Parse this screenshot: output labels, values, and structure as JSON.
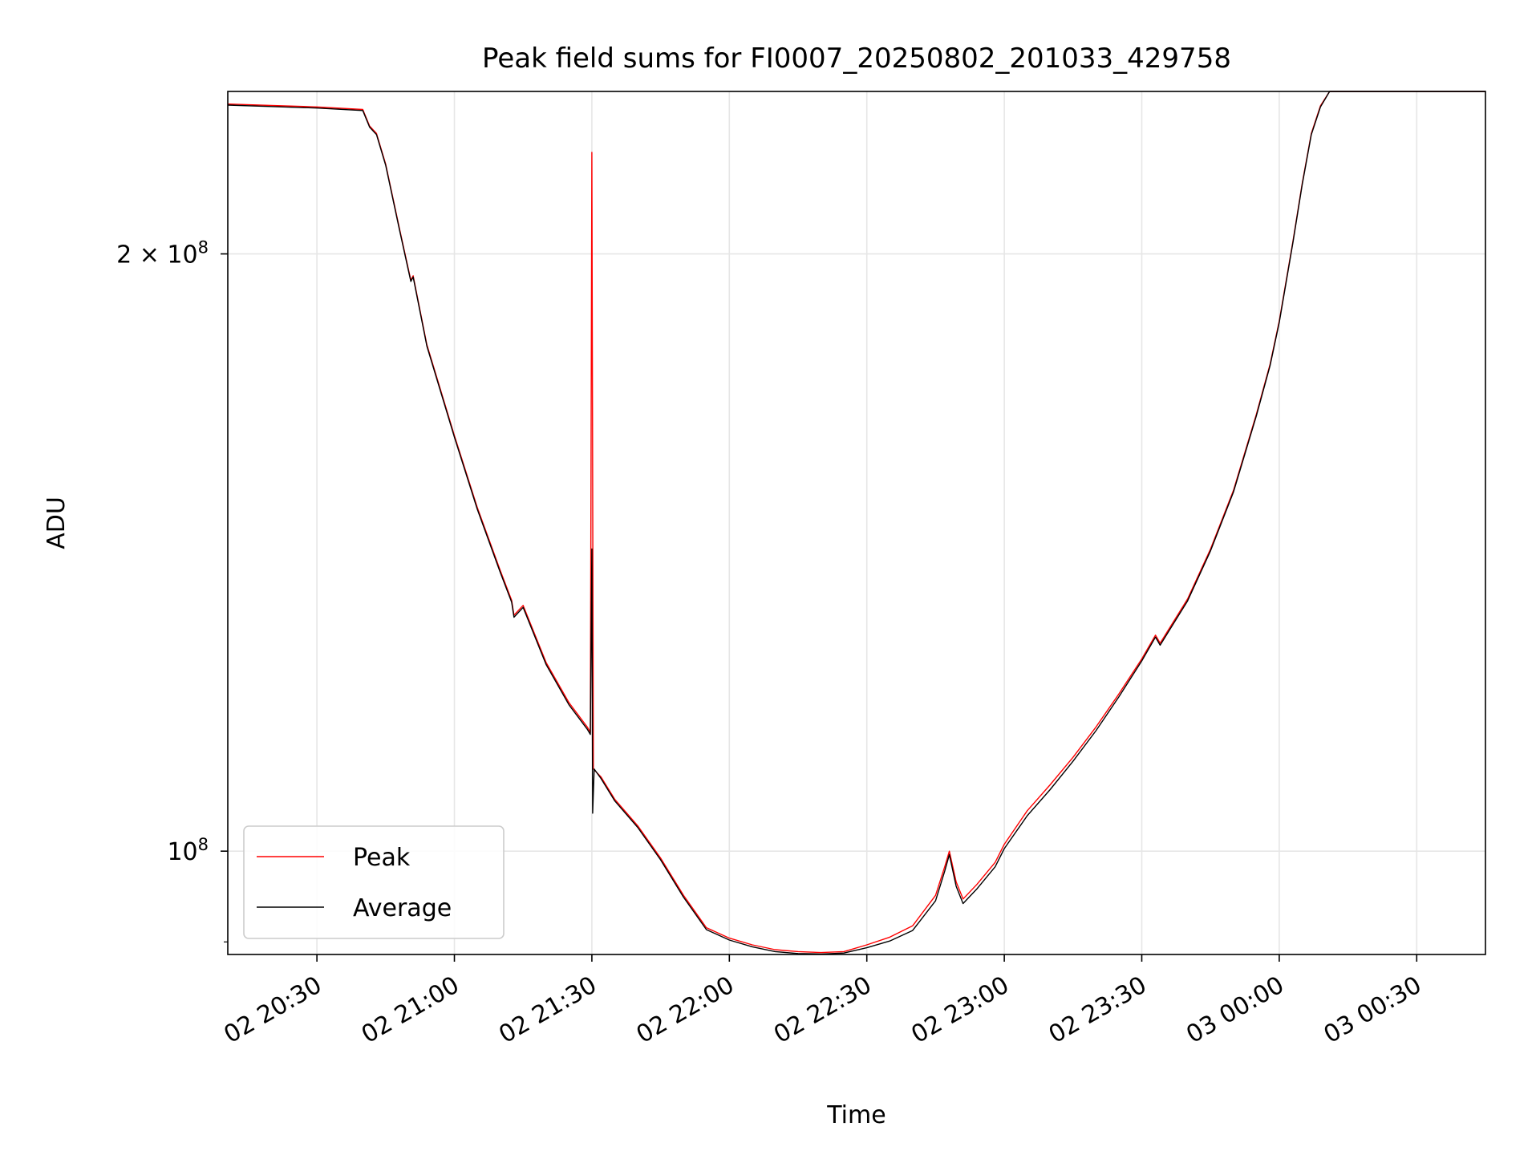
{
  "chart_data": {
    "type": "line",
    "title": "Peak field sums for FI0007_20250802_201033_429758",
    "xlabel": "Time",
    "ylabel": "ADU",
    "xaxis_kind": "datetime",
    "xlim": [
      "2025-08-02T20:10:33",
      "2025-08-03T00:45:00"
    ],
    "ylim": [
      88700000,
      241500000
    ],
    "yscale": "log",
    "grid": true,
    "legend_position": "lower-left",
    "x_ticks": [
      {
        "value": "2025-08-02T20:30:00",
        "label": "02 20:30"
      },
      {
        "value": "2025-08-02T21:00:00",
        "label": "02 21:00"
      },
      {
        "value": "2025-08-02T21:30:00",
        "label": "02 21:30"
      },
      {
        "value": "2025-08-02T22:00:00",
        "label": "02 22:00"
      },
      {
        "value": "2025-08-02T22:30:00",
        "label": "02 22:30"
      },
      {
        "value": "2025-08-02T23:00:00",
        "label": "02 23:00"
      },
      {
        "value": "2025-08-02T23:30:00",
        "label": "02 23:30"
      },
      {
        "value": "2025-08-03T00:00:00",
        "label": "03 00:00"
      },
      {
        "value": "2025-08-03T00:30:00",
        "label": "03 00:30"
      }
    ],
    "y_ticks": [
      {
        "value": 100000000,
        "base": "10",
        "exp": "8"
      },
      {
        "value": 200000000,
        "base": "2 × 10",
        "exp": "8"
      }
    ],
    "series": [
      {
        "name": "Peak",
        "color": "#ff0000",
        "points": [
          [
            "2025-08-02T20:10:33",
            238000000
          ],
          [
            "2025-08-02T20:20:00",
            237600000
          ],
          [
            "2025-08-02T20:30:00",
            237200000
          ],
          [
            "2025-08-02T20:40:00",
            236500000
          ],
          [
            "2025-08-02T20:41:30",
            232000000
          ],
          [
            "2025-08-02T20:43:00",
            230000000
          ],
          [
            "2025-08-02T20:45:00",
            222000000
          ],
          [
            "2025-08-02T20:48:00",
            206000000
          ],
          [
            "2025-08-02T20:50:30",
            194000000
          ],
          [
            "2025-08-02T20:51:00",
            195000000
          ],
          [
            "2025-08-02T20:54:00",
            180000000
          ],
          [
            "2025-08-02T21:00:00",
            162000000
          ],
          [
            "2025-08-02T21:05:00",
            149000000
          ],
          [
            "2025-08-02T21:10:00",
            138500000
          ],
          [
            "2025-08-02T21:12:30",
            133800000
          ],
          [
            "2025-08-02T21:13:00",
            131500000
          ],
          [
            "2025-08-02T21:15:00",
            133000000
          ],
          [
            "2025-08-02T21:20:00",
            124500000
          ],
          [
            "2025-08-02T21:25:00",
            118800000
          ],
          [
            "2025-08-02T21:29:00",
            115500000
          ],
          [
            "2025-08-02T21:29:40",
            114800000
          ],
          [
            "2025-08-02T21:30:00",
            225000000
          ],
          [
            "2025-08-02T21:30:20",
            110000000
          ],
          [
            "2025-08-02T21:32:00",
            109000000
          ],
          [
            "2025-08-02T21:35:00",
            106200000
          ],
          [
            "2025-08-02T21:40:00",
            103000000
          ],
          [
            "2025-08-02T21:45:00",
            99200000
          ],
          [
            "2025-08-02T21:50:00",
            95000000
          ],
          [
            "2025-08-02T21:55:00",
            91500000
          ],
          [
            "2025-08-02T22:00:00",
            90400000
          ],
          [
            "2025-08-02T22:05:00",
            89700000
          ],
          [
            "2025-08-02T22:10:00",
            89200000
          ],
          [
            "2025-08-02T22:15:00",
            89000000
          ],
          [
            "2025-08-02T22:20:00",
            88900000
          ],
          [
            "2025-08-02T22:25:00",
            89000000
          ],
          [
            "2025-08-02T22:30:00",
            89700000
          ],
          [
            "2025-08-02T22:35:00",
            90500000
          ],
          [
            "2025-08-02T22:40:00",
            91700000
          ],
          [
            "2025-08-02T22:45:00",
            95000000
          ],
          [
            "2025-08-02T22:47:00",
            98200000
          ],
          [
            "2025-08-02T22:48:00",
            100000000
          ],
          [
            "2025-08-02T22:49:30",
            96500000
          ],
          [
            "2025-08-02T22:51:00",
            94600000
          ],
          [
            "2025-08-02T22:54:00",
            96200000
          ],
          [
            "2025-08-02T22:58:00",
            98700000
          ],
          [
            "2025-08-02T23:00:00",
            100800000
          ],
          [
            "2025-08-02T23:05:00",
            104800000
          ],
          [
            "2025-08-02T23:10:00",
            108000000
          ],
          [
            "2025-08-02T23:15:00",
            111500000
          ],
          [
            "2025-08-02T23:20:00",
            115500000
          ],
          [
            "2025-08-02T23:25:00",
            120000000
          ],
          [
            "2025-08-02T23:30:00",
            125000000
          ],
          [
            "2025-08-02T23:33:00",
            128500000
          ],
          [
            "2025-08-02T23:34:00",
            127300000
          ],
          [
            "2025-08-02T23:40:00",
            134000000
          ],
          [
            "2025-08-02T23:45:00",
            142000000
          ],
          [
            "2025-08-02T23:50:00",
            152000000
          ],
          [
            "2025-08-02T23:55:00",
            166000000
          ],
          [
            "2025-08-02T23:58:00",
            176000000
          ],
          [
            "2025-08-03T00:00:00",
            185000000
          ],
          [
            "2025-08-03T00:03:00",
            203000000
          ],
          [
            "2025-08-03T00:05:00",
            217000000
          ],
          [
            "2025-08-03T00:07:00",
            230000000
          ],
          [
            "2025-08-03T00:09:00",
            237500000
          ],
          [
            "2025-08-03T00:11:00",
            241500000
          ],
          [
            "2025-08-03T00:45:00",
            241500000
          ]
        ]
      },
      {
        "name": "Average",
        "color": "#000000",
        "points": [
          [
            "2025-08-02T20:10:33",
            237700000
          ],
          [
            "2025-08-02T20:20:00",
            237300000
          ],
          [
            "2025-08-02T20:30:00",
            236900000
          ],
          [
            "2025-08-02T20:40:00",
            236200000
          ],
          [
            "2025-08-02T20:41:30",
            231700000
          ],
          [
            "2025-08-02T20:43:00",
            229700000
          ],
          [
            "2025-08-02T20:45:00",
            221700000
          ],
          [
            "2025-08-02T20:48:00",
            205700000
          ],
          [
            "2025-08-02T20:50:30",
            193700000
          ],
          [
            "2025-08-02T20:51:00",
            194700000
          ],
          [
            "2025-08-02T20:54:00",
            179700000
          ],
          [
            "2025-08-02T21:00:00",
            161700000
          ],
          [
            "2025-08-02T21:05:00",
            148700000
          ],
          [
            "2025-08-02T21:10:00",
            138200000
          ],
          [
            "2025-08-02T21:12:30",
            133500000
          ],
          [
            "2025-08-02T21:13:00",
            131200000
          ],
          [
            "2025-08-02T21:15:00",
            132700000
          ],
          [
            "2025-08-02T21:20:00",
            124200000
          ],
          [
            "2025-08-02T21:25:00",
            118500000
          ],
          [
            "2025-08-02T21:29:00",
            115200000
          ],
          [
            "2025-08-02T21:29:40",
            114500000
          ],
          [
            "2025-08-02T21:30:00",
            142000000
          ],
          [
            "2025-08-02T21:30:10",
            104500000
          ],
          [
            "2025-08-02T21:30:30",
            110000000
          ],
          [
            "2025-08-02T21:32:00",
            108800000
          ],
          [
            "2025-08-02T21:35:00",
            106000000
          ],
          [
            "2025-08-02T21:40:00",
            102800000
          ],
          [
            "2025-08-02T21:45:00",
            99000000
          ],
          [
            "2025-08-02T21:50:00",
            94800000
          ],
          [
            "2025-08-02T21:55:00",
            91300000
          ],
          [
            "2025-08-02T22:00:00",
            90200000
          ],
          [
            "2025-08-02T22:05:00",
            89500000
          ],
          [
            "2025-08-02T22:10:00",
            89000000
          ],
          [
            "2025-08-02T22:15:00",
            88800000
          ],
          [
            "2025-08-02T22:20:00",
            88750000
          ],
          [
            "2025-08-02T22:25:00",
            88850000
          ],
          [
            "2025-08-02T22:30:00",
            89400000
          ],
          [
            "2025-08-02T22:35:00",
            90100000
          ],
          [
            "2025-08-02T22:40:00",
            91200000
          ],
          [
            "2025-08-02T22:45:00",
            94400000
          ],
          [
            "2025-08-02T22:47:00",
            97700000
          ],
          [
            "2025-08-02T22:48:00",
            99600000
          ],
          [
            "2025-08-02T22:49:30",
            96000000
          ],
          [
            "2025-08-02T22:51:00",
            94100000
          ],
          [
            "2025-08-02T22:54:00",
            95700000
          ],
          [
            "2025-08-02T22:58:00",
            98200000
          ],
          [
            "2025-08-02T23:00:00",
            100300000
          ],
          [
            "2025-08-02T23:05:00",
            104200000
          ],
          [
            "2025-08-02T23:10:00",
            107400000
          ],
          [
            "2025-08-02T23:15:00",
            111000000
          ],
          [
            "2025-08-02T23:20:00",
            115000000
          ],
          [
            "2025-08-02T23:25:00",
            119600000
          ],
          [
            "2025-08-02T23:30:00",
            124700000
          ],
          [
            "2025-08-02T23:33:00",
            128200000
          ],
          [
            "2025-08-02T23:34:00",
            127000000
          ],
          [
            "2025-08-02T23:40:00",
            133700000
          ],
          [
            "2025-08-02T23:45:00",
            141700000
          ],
          [
            "2025-08-02T23:50:00",
            151700000
          ],
          [
            "2025-08-02T23:55:00",
            165700000
          ],
          [
            "2025-08-02T23:58:00",
            175700000
          ],
          [
            "2025-08-03T00:00:00",
            184700000
          ],
          [
            "2025-08-03T00:03:00",
            202700000
          ],
          [
            "2025-08-03T00:05:00",
            216700000
          ],
          [
            "2025-08-03T00:07:00",
            229700000
          ],
          [
            "2025-08-03T00:09:00",
            237200000
          ],
          [
            "2025-08-03T00:11:00",
            241500000
          ],
          [
            "2025-08-03T00:45:00",
            241500000
          ]
        ]
      }
    ]
  }
}
